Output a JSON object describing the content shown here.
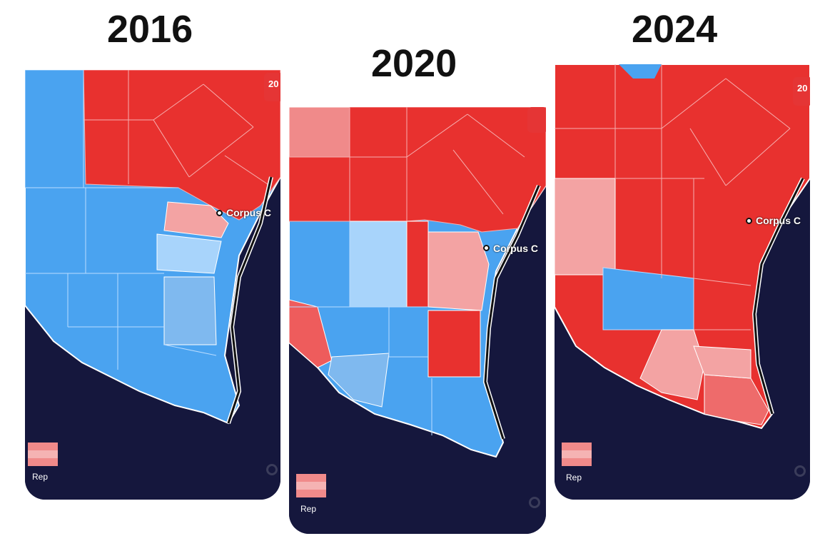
{
  "panels": [
    {
      "year": "2016",
      "city_label": "Corpus C",
      "legend_label": "Rep",
      "badge": "20",
      "county_colors": {
        "nw": "#4aa3f0",
        "north_red": "#e8312f",
        "mid_west": "#4aa3f0",
        "pink_coast": "#f3a3a3",
        "light_coast": "#a8d4fb",
        "mid_coast": "#7fb9ef",
        "south": "#4aa3f0"
      }
    },
    {
      "year": "2020",
      "city_label": "Corpus C",
      "legend_label": "Rep",
      "badge": "",
      "county_colors": {
        "nw": "#f08a8a",
        "north_red": "#e8312f",
        "mid_west": "#4aa3f0",
        "center_light": "#a8d4fb",
        "pink_coast": "#f3a3a3",
        "sw_red": "#ee5c5c",
        "south_light": "#7fb9ef",
        "south": "#4aa3f0",
        "kenedy_red": "#e8312f"
      }
    },
    {
      "year": "2024",
      "city_label": "Corpus C",
      "legend_label": "Rep",
      "badge": "20",
      "county_colors": {
        "north_red": "#e8312f",
        "west_pink": "#f3a3a3",
        "center_blue": "#4aa3f0",
        "south_pink": "#f3a3a3",
        "south_mid": "#ee6b6b"
      }
    }
  ],
  "legend_colors": [
    "#f08a8a",
    "#f5b3b3",
    "#f08a8a"
  ],
  "ocean_color": "#15173d"
}
